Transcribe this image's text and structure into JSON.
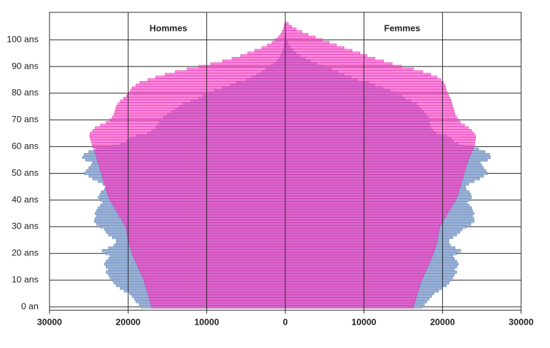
{
  "chart_data": {
    "type": "pyramid",
    "left_label": "Hommes",
    "right_label": "Femmes",
    "categories": [
      "0 an",
      null,
      null,
      null,
      null,
      null,
      null,
      null,
      null,
      null,
      "10 ans",
      null,
      null,
      null,
      null,
      null,
      null,
      null,
      null,
      null,
      "20 ans",
      null,
      null,
      null,
      null,
      null,
      null,
      null,
      null,
      null,
      "30 ans",
      null,
      null,
      null,
      null,
      null,
      null,
      null,
      null,
      null,
      "40 ans",
      null,
      null,
      null,
      null,
      null,
      null,
      null,
      null,
      null,
      "50 ans",
      null,
      null,
      null,
      null,
      null,
      null,
      null,
      null,
      null,
      "60 ans",
      null,
      null,
      null,
      null,
      null,
      null,
      null,
      null,
      null,
      "70 ans",
      null,
      null,
      null,
      null,
      null,
      null,
      null,
      null,
      null,
      "80 ans",
      null,
      null,
      null,
      null,
      null,
      null,
      null,
      null,
      null,
      "90 ans",
      null,
      null,
      null,
      null,
      null,
      null,
      null,
      null,
      null,
      "100 ans",
      null,
      null,
      null,
      null,
      null,
      null
    ],
    "series": [
      {
        "side": "left",
        "color": "#9db4d8",
        "values": [
          18300,
          18600,
          19000,
          19200,
          19500,
          19800,
          20500,
          21000,
          21500,
          21800,
          22000,
          22300,
          22500,
          22800,
          22500,
          22800,
          23000,
          22800,
          22500,
          22300,
          22800,
          23300,
          22500,
          21800,
          21500,
          21500,
          22000,
          22500,
          22800,
          23000,
          23500,
          24000,
          24300,
          24200,
          24000,
          24200,
          24000,
          23800,
          23500,
          23200,
          23500,
          23800,
          23600,
          23400,
          23000,
          22800,
          23200,
          23800,
          24500,
          25000,
          25600,
          25300,
          25000,
          24700,
          24500,
          25400,
          25800,
          25600,
          25000,
          24000,
          22000,
          21000,
          20200,
          19800,
          19000,
          17500,
          17000,
          16500,
          16300,
          16000,
          16000,
          15500,
          15000,
          14500,
          14000,
          13500,
          13000,
          12000,
          11000,
          10500,
          9800,
          9000,
          8000,
          7000,
          6200,
          5000,
          4300,
          3600,
          3000,
          2500,
          1900,
          1500,
          1100,
          800,
          600,
          420,
          300,
          200,
          140,
          90,
          60,
          40,
          25,
          15,
          10,
          5,
          3
        ]
      },
      {
        "side": "right",
        "color": "#9db4d8",
        "values": [
          17400,
          17700,
          18000,
          18300,
          18600,
          18900,
          19500,
          20000,
          20500,
          20800,
          21000,
          21300,
          21500,
          21800,
          21500,
          21800,
          22000,
          21800,
          21500,
          21300,
          21800,
          22300,
          21600,
          21000,
          20800,
          20800,
          21300,
          21800,
          22200,
          22500,
          23000,
          23600,
          24000,
          24000,
          23800,
          24000,
          23800,
          23700,
          23400,
          23100,
          23400,
          23700,
          23600,
          23400,
          23000,
          22900,
          23300,
          24000,
          24700,
          25200,
          25700,
          25500,
          25200,
          25000,
          24800,
          25700,
          26100,
          26000,
          25400,
          24600,
          22800,
          22000,
          21400,
          21100,
          20500,
          19200,
          18800,
          18500,
          18400,
          18300,
          18500,
          18200,
          17900,
          17600,
          17300,
          17000,
          16700,
          16000,
          15200,
          14800,
          14000,
          13300,
          12400,
          11400,
          10600,
          9200,
          8400,
          7500,
          6700,
          5900,
          4800,
          4000,
          3200,
          2500,
          1900,
          1400,
          1000,
          700,
          450,
          280,
          170,
          100,
          60,
          35,
          20,
          10,
          5
        ]
      },
      {
        "side": "left",
        "color": "#ff3dc8",
        "values": [
          17000,
          17100,
          17200,
          17300,
          17400,
          17500,
          17600,
          17700,
          17800,
          17900,
          18000,
          18150,
          18300,
          18450,
          18600,
          18750,
          18900,
          19050,
          19200,
          19350,
          19500,
          19600,
          19700,
          19800,
          19900,
          20000,
          20050,
          20100,
          20150,
          20200,
          20300,
          20500,
          20700,
          20900,
          21100,
          21300,
          21500,
          21700,
          21900,
          22100,
          22300,
          22450,
          22600,
          22700,
          22800,
          22900,
          23000,
          23100,
          23200,
          23300,
          23400,
          23500,
          23600,
          23700,
          23800,
          23900,
          24000,
          24100,
          24200,
          24350,
          24500,
          24600,
          24700,
          24800,
          24900,
          24800,
          24500,
          24200,
          23500,
          22800,
          22300,
          22000,
          21800,
          21700,
          21600,
          21500,
          21300,
          21000,
          20600,
          20200,
          19900,
          19700,
          19500,
          19000,
          18500,
          17500,
          16500,
          15300,
          14000,
          12500,
          11000,
          9500,
          8000,
          6800,
          5700,
          4800,
          3900,
          3000,
          2300,
          1700,
          1300,
          900,
          600,
          400,
          250,
          150,
          80
        ]
      },
      {
        "side": "right",
        "color": "#ff3dc8",
        "values": [
          16300,
          16400,
          16500,
          16600,
          16700,
          16800,
          16900,
          17000,
          17100,
          17200,
          17350,
          17500,
          17650,
          17800,
          17950,
          18100,
          18250,
          18400,
          18550,
          18700,
          18850,
          18950,
          19050,
          19150,
          19250,
          19350,
          19400,
          19450,
          19500,
          19550,
          19650,
          19850,
          20050,
          20250,
          20450,
          20650,
          20850,
          21050,
          21250,
          21450,
          21650,
          21800,
          21950,
          22050,
          22150,
          22250,
          22350,
          22450,
          22550,
          22650,
          22750,
          22850,
          22950,
          23050,
          23150,
          23250,
          23400,
          23550,
          23700,
          23850,
          24000,
          24100,
          24150,
          24200,
          24200,
          24000,
          23700,
          23300,
          22800,
          22300,
          22000,
          21800,
          21600,
          21500,
          21400,
          21300,
          21200,
          21100,
          21000,
          20800,
          20600,
          20500,
          20400,
          20300,
          20100,
          19800,
          19300,
          18500,
          17500,
          16300,
          14800,
          13600,
          12500,
          11400,
          10400,
          9500,
          8500,
          7500,
          6500,
          5600,
          4700,
          3800,
          2900,
          2100,
          1400,
          800,
          400
        ]
      }
    ],
    "xlim": [
      0,
      30000
    ],
    "xticks": [
      0,
      10000,
      20000,
      30000
    ],
    "grid": true
  }
}
